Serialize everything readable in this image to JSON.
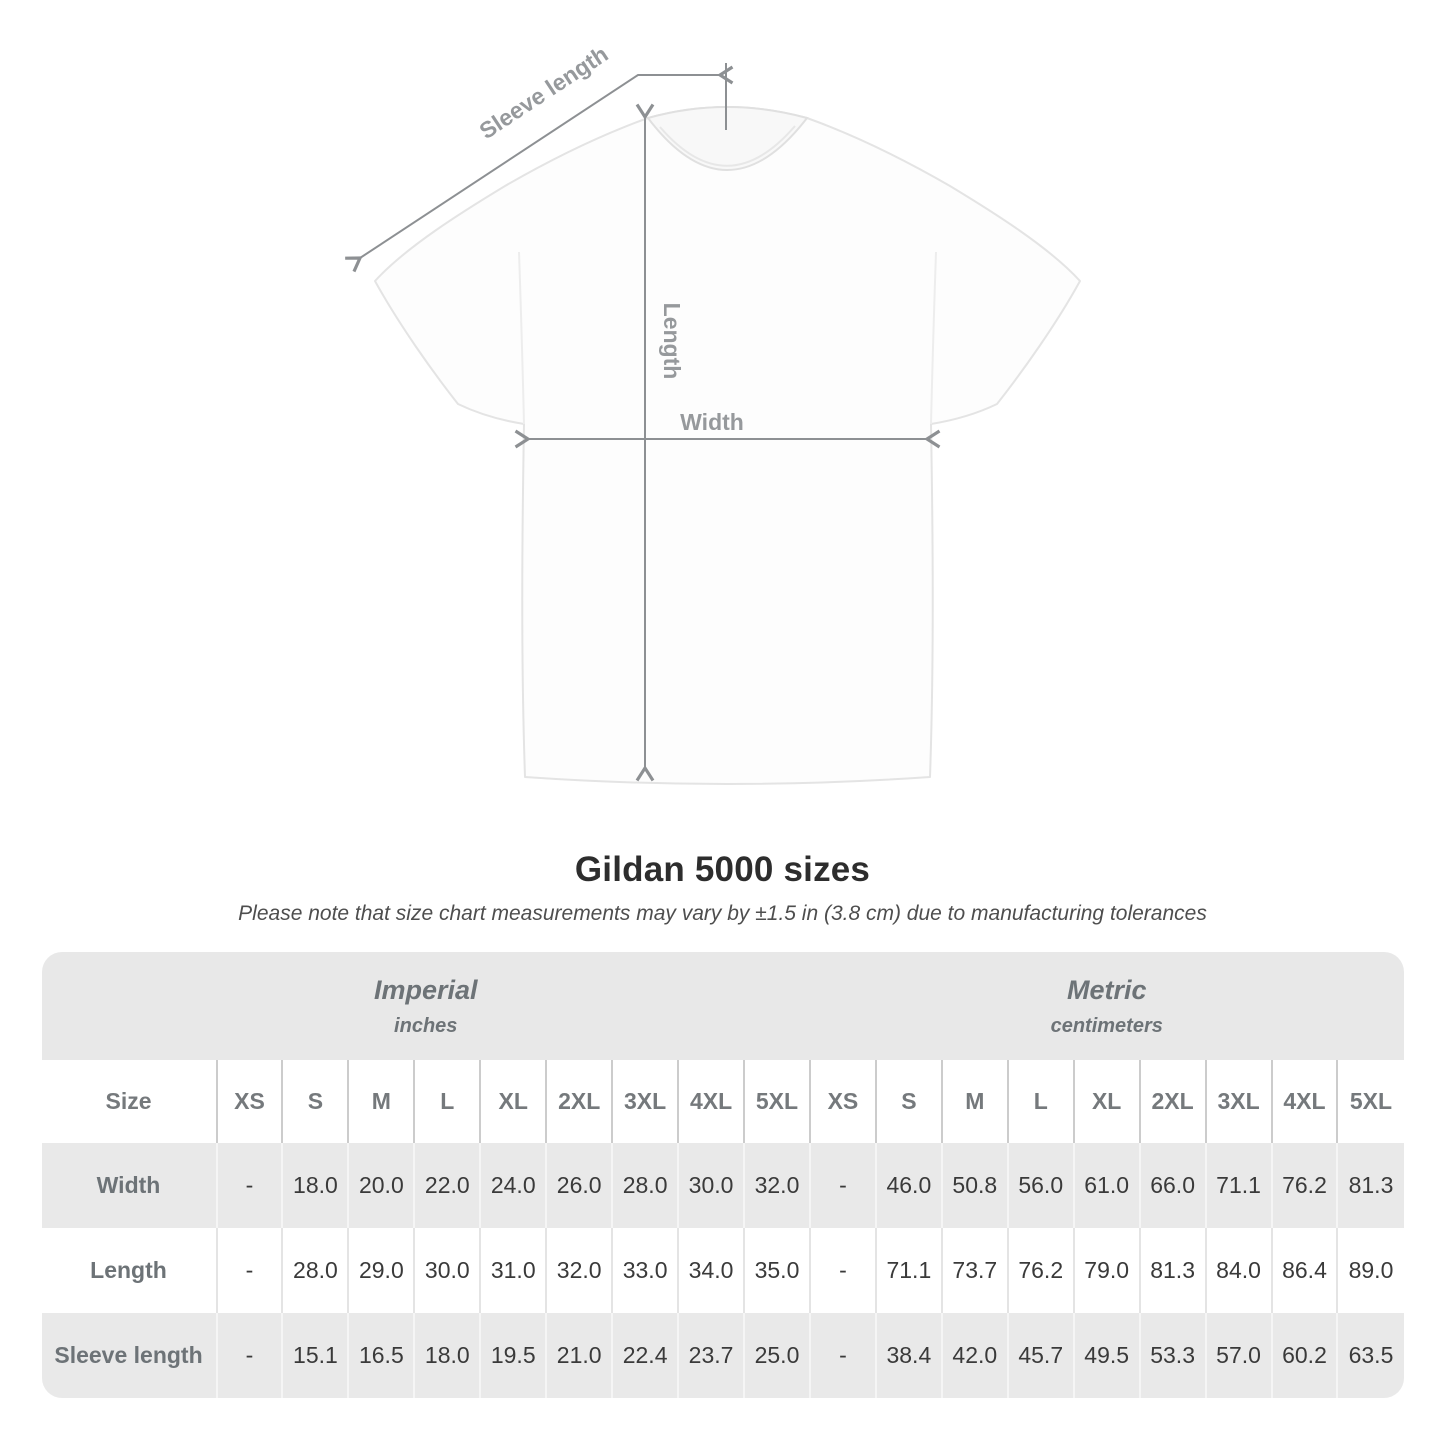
{
  "diagram": {
    "labels": {
      "sleeve_length": "Sleeve length",
      "length": "Length",
      "width": "Width"
    }
  },
  "chart_data": {
    "type": "table",
    "title": "Gildan 5000 sizes",
    "note": "Please note that size chart measurements may vary by ±1.5 in (3.8 cm) due to manufacturing tolerances",
    "unit_groups": [
      {
        "label": "Imperial",
        "sublabel": "inches"
      },
      {
        "label": "Metric",
        "sublabel": "centimeters"
      }
    ],
    "size_header": "Size",
    "sizes": [
      "XS",
      "S",
      "M",
      "L",
      "XL",
      "2XL",
      "3XL",
      "4XL",
      "5XL"
    ],
    "rows": [
      {
        "label": "Width",
        "imperial": [
          "-",
          "18.0",
          "20.0",
          "22.0",
          "24.0",
          "26.0",
          "28.0",
          "30.0",
          "32.0"
        ],
        "metric": [
          "-",
          "46.0",
          "50.8",
          "56.0",
          "61.0",
          "66.0",
          "71.1",
          "76.2",
          "81.3"
        ]
      },
      {
        "label": "Length",
        "imperial": [
          "-",
          "28.0",
          "29.0",
          "30.0",
          "31.0",
          "32.0",
          "33.0",
          "34.0",
          "35.0"
        ],
        "metric": [
          "-",
          "71.1",
          "73.7",
          "76.2",
          "79.0",
          "81.3",
          "84.0",
          "86.4",
          "89.0"
        ]
      },
      {
        "label": "Sleeve length",
        "imperial": [
          "-",
          "15.1",
          "16.5",
          "18.0",
          "19.5",
          "21.0",
          "22.4",
          "23.7",
          "25.0"
        ],
        "metric": [
          "-",
          "38.4",
          "42.0",
          "45.7",
          "49.5",
          "53.3",
          "57.0",
          "60.2",
          "63.5"
        ]
      }
    ]
  },
  "colors": {
    "table_header_bg": "#e8e8e8",
    "row_stripe_bg": "#e9e9e9",
    "annotation_gray": "#96999c",
    "header_text": "#6d7377",
    "number_text": "#3a3a3a"
  }
}
